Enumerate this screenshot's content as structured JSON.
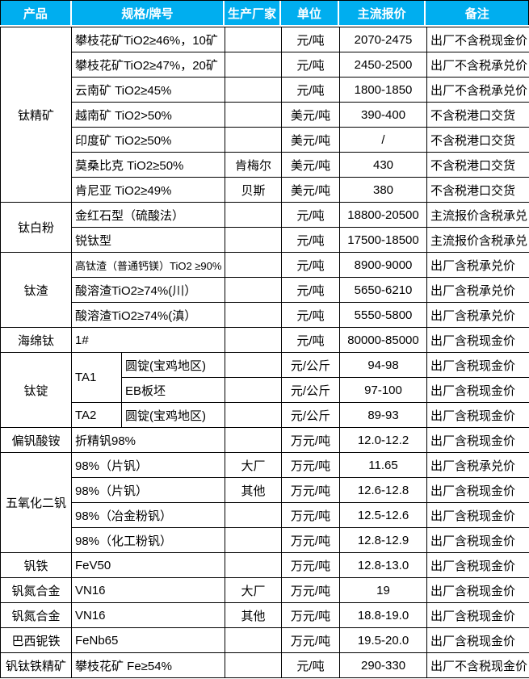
{
  "page": {
    "background": "#ffffff"
  },
  "table": {
    "border_color": "#000000",
    "header": {
      "bg_color": "#00AEEF",
      "text_color": "#ffffff",
      "cells": [
        "产品",
        "规格/牌号",
        "生产厂家",
        "单位",
        "主流报价",
        "备注"
      ]
    },
    "rows": [
      [
        {
          "name": "product",
          "text": "钛精矿",
          "rowspan": 7
        },
        {
          "name": "spec",
          "text": "攀枝花矿TiO2≥46%，10矿",
          "colspan": 2
        },
        {
          "name": "manufacturer",
          "text": ""
        },
        {
          "name": "unit",
          "text": "元/吨"
        },
        {
          "name": "price",
          "text": "2070-2475"
        },
        {
          "name": "note",
          "text": "出厂不含税现金价"
        }
      ],
      [
        {
          "name": "spec",
          "text": "攀枝花矿TiO2≥47%，20矿",
          "colspan": 2
        },
        {
          "name": "manufacturer",
          "text": ""
        },
        {
          "name": "unit",
          "text": "元/吨"
        },
        {
          "name": "price",
          "text": "2450-2500"
        },
        {
          "name": "note",
          "text": "出厂不含税承兑价"
        }
      ],
      [
        {
          "name": "spec",
          "text": "云南矿 TiO2≥45%",
          "colspan": 2
        },
        {
          "name": "manufacturer",
          "text": ""
        },
        {
          "name": "unit",
          "text": "元/吨"
        },
        {
          "name": "price",
          "text": "1800-1850"
        },
        {
          "name": "note",
          "text": "出厂不含税承兑价"
        }
      ],
      [
        {
          "name": "spec",
          "text": "越南矿 TiO2>50%",
          "colspan": 2
        },
        {
          "name": "manufacturer",
          "text": ""
        },
        {
          "name": "unit",
          "text": "美元/吨"
        },
        {
          "name": "price",
          "text": "390-400"
        },
        {
          "name": "note",
          "text": "不含税港口交货"
        }
      ],
      [
        {
          "name": "spec",
          "text": "印度矿 TiO2≥50%",
          "colspan": 2
        },
        {
          "name": "manufacturer",
          "text": ""
        },
        {
          "name": "unit",
          "text": "美元/吨"
        },
        {
          "name": "price",
          "text": "/"
        },
        {
          "name": "note",
          "text": "不含税港口交货"
        }
      ],
      [
        {
          "name": "spec",
          "text": "莫桑比克 TiO2≥50%",
          "colspan": 2
        },
        {
          "name": "manufacturer",
          "text": "肯梅尔"
        },
        {
          "name": "unit",
          "text": "美元/吨"
        },
        {
          "name": "price",
          "text": "430"
        },
        {
          "name": "note",
          "text": "不含税港口交货"
        }
      ],
      [
        {
          "name": "spec",
          "text": "肯尼亚 TiO2≥49%",
          "colspan": 2
        },
        {
          "name": "manufacturer",
          "text": "贝斯"
        },
        {
          "name": "unit",
          "text": "美元/吨"
        },
        {
          "name": "price",
          "text": "380"
        },
        {
          "name": "note",
          "text": "不含税港口交货"
        }
      ],
      [
        {
          "name": "product",
          "text": "钛白粉",
          "rowspan": 2
        },
        {
          "name": "spec",
          "text": "金红石型（硫酸法）",
          "colspan": 2
        },
        {
          "name": "manufacturer",
          "text": ""
        },
        {
          "name": "unit",
          "text": "元/吨"
        },
        {
          "name": "price",
          "text": "18800-20500"
        },
        {
          "name": "note",
          "text": "主流报价含税承兑"
        }
      ],
      [
        {
          "name": "spec",
          "text": "锐钛型",
          "colspan": 2
        },
        {
          "name": "manufacturer",
          "text": ""
        },
        {
          "name": "unit",
          "text": "元/吨"
        },
        {
          "name": "price",
          "text": "17500-18500"
        },
        {
          "name": "note",
          "text": "主流报价含税承兑"
        }
      ],
      [
        {
          "name": "product",
          "text": "钛渣",
          "rowspan": 3
        },
        {
          "name": "spec",
          "text": "高钛渣（普通钙镁）TiO2 ≥90%",
          "colspan": 2,
          "small": true
        },
        {
          "name": "manufacturer",
          "text": ""
        },
        {
          "name": "unit",
          "text": "元/吨"
        },
        {
          "name": "price",
          "text": "8900-9000"
        },
        {
          "name": "note",
          "text": "出厂含税承兑价"
        }
      ],
      [
        {
          "name": "spec",
          "text": "酸溶渣TiO2≥74%(川）",
          "colspan": 2
        },
        {
          "name": "manufacturer",
          "text": ""
        },
        {
          "name": "unit",
          "text": "元/吨"
        },
        {
          "name": "price",
          "text": "5650-6210"
        },
        {
          "name": "note",
          "text": "出厂含税承兑价"
        }
      ],
      [
        {
          "name": "spec",
          "text": "酸溶渣TiO2≥74%(滇）",
          "colspan": 2
        },
        {
          "name": "manufacturer",
          "text": ""
        },
        {
          "name": "unit",
          "text": "元/吨"
        },
        {
          "name": "price",
          "text": "5550-5800"
        },
        {
          "name": "note",
          "text": "出厂含税承兑价"
        }
      ],
      [
        {
          "name": "product",
          "text": "海绵钛"
        },
        {
          "name": "spec",
          "text": "1#",
          "colspan": 2
        },
        {
          "name": "manufacturer",
          "text": ""
        },
        {
          "name": "unit",
          "text": "元/吨"
        },
        {
          "name": "price",
          "text": "80000-85000"
        },
        {
          "name": "note",
          "text": "出厂含税现金价"
        }
      ],
      [
        {
          "name": "product",
          "text": "钛锭",
          "rowspan": 3
        },
        {
          "name": "spec-grade",
          "text": "TA1",
          "rowspan": 2
        },
        {
          "name": "spec-form",
          "text": "圆锭(宝鸡地区)"
        },
        {
          "name": "manufacturer",
          "text": ""
        },
        {
          "name": "unit",
          "text": "元/公斤"
        },
        {
          "name": "price",
          "text": "94-98"
        },
        {
          "name": "note",
          "text": "出厂含税现金价"
        }
      ],
      [
        {
          "name": "spec-form",
          "text": "EB板坯"
        },
        {
          "name": "manufacturer",
          "text": ""
        },
        {
          "name": "unit",
          "text": "元/公斤"
        },
        {
          "name": "price",
          "text": "97-100"
        },
        {
          "name": "note",
          "text": "出厂含税现金价"
        }
      ],
      [
        {
          "name": "spec-grade",
          "text": "TA2"
        },
        {
          "name": "spec-form",
          "text": "圆锭(宝鸡地区)"
        },
        {
          "name": "manufacturer",
          "text": ""
        },
        {
          "name": "unit",
          "text": "元/公斤"
        },
        {
          "name": "price",
          "text": "89-93"
        },
        {
          "name": "note",
          "text": "出厂含税现金价"
        }
      ],
      [
        {
          "name": "product",
          "text": "偏钒酸铵"
        },
        {
          "name": "spec",
          "text": "折精钒98%",
          "colspan": 2
        },
        {
          "name": "manufacturer",
          "text": ""
        },
        {
          "name": "unit",
          "text": "万元/吨"
        },
        {
          "name": "price",
          "text": "12.0-12.2"
        },
        {
          "name": "note",
          "text": "出厂含税现金价"
        }
      ],
      [
        {
          "name": "product",
          "text": "五氧化二钒",
          "rowspan": 4
        },
        {
          "name": "spec",
          "text": "98%（片钒）",
          "colspan": 2
        },
        {
          "name": "manufacturer",
          "text": "大厂"
        },
        {
          "name": "unit",
          "text": "万元/吨"
        },
        {
          "name": "price",
          "text": "11.65"
        },
        {
          "name": "note",
          "text": "出厂含税承兑价"
        }
      ],
      [
        {
          "name": "spec",
          "text": "98%（片钒）",
          "colspan": 2
        },
        {
          "name": "manufacturer",
          "text": "其他"
        },
        {
          "name": "unit",
          "text": "万元/吨"
        },
        {
          "name": "price",
          "text": "12.6-12.8"
        },
        {
          "name": "note",
          "text": "出厂含税现金价"
        }
      ],
      [
        {
          "name": "spec",
          "text": "98%（冶金粉钒）",
          "colspan": 2
        },
        {
          "name": "manufacturer",
          "text": ""
        },
        {
          "name": "unit",
          "text": "万元/吨"
        },
        {
          "name": "price",
          "text": "12.5-12.6"
        },
        {
          "name": "note",
          "text": "出厂含税现金价"
        }
      ],
      [
        {
          "name": "spec",
          "text": "98%（化工粉钒）",
          "colspan": 2
        },
        {
          "name": "manufacturer",
          "text": ""
        },
        {
          "name": "unit",
          "text": "万元/吨"
        },
        {
          "name": "price",
          "text": "12.8-12.9"
        },
        {
          "name": "note",
          "text": "出厂含税现金价"
        }
      ],
      [
        {
          "name": "product",
          "text": "钒铁"
        },
        {
          "name": "spec",
          "text": "FeV50",
          "colspan": 2
        },
        {
          "name": "manufacturer",
          "text": ""
        },
        {
          "name": "unit",
          "text": "万元/吨"
        },
        {
          "name": "price",
          "text": "12.8-13.0"
        },
        {
          "name": "note",
          "text": "出厂含税现金价"
        }
      ],
      [
        {
          "name": "product",
          "text": "钒氮合金"
        },
        {
          "name": "spec",
          "text": "VN16",
          "colspan": 2
        },
        {
          "name": "manufacturer",
          "text": "大厂"
        },
        {
          "name": "unit",
          "text": "万元/吨"
        },
        {
          "name": "price",
          "text": "19"
        },
        {
          "name": "note",
          "text": "出厂含税现金价"
        }
      ],
      [
        {
          "name": "product",
          "text": "钒氮合金"
        },
        {
          "name": "spec",
          "text": "VN16",
          "colspan": 2
        },
        {
          "name": "manufacturer",
          "text": "其他"
        },
        {
          "name": "unit",
          "text": "万元/吨"
        },
        {
          "name": "price",
          "text": "18.8-19.0"
        },
        {
          "name": "note",
          "text": "出厂含税现金价"
        }
      ],
      [
        {
          "name": "product",
          "text": "巴西铌铁"
        },
        {
          "name": "spec",
          "text": "FeNb65",
          "colspan": 2
        },
        {
          "name": "manufacturer",
          "text": ""
        },
        {
          "name": "unit",
          "text": "万元/吨"
        },
        {
          "name": "price",
          "text": "19.5-20.0"
        },
        {
          "name": "note",
          "text": "出厂含税现金价"
        }
      ],
      [
        {
          "name": "product",
          "text": "钒钛铁精矿"
        },
        {
          "name": "spec",
          "text": "攀枝花矿 Fe≥54%",
          "colspan": 2
        },
        {
          "name": "manufacturer",
          "text": ""
        },
        {
          "name": "unit",
          "text": "元/吨"
        },
        {
          "name": "price",
          "text": "290-330"
        },
        {
          "name": "note",
          "text": "出厂不含税现金价"
        }
      ]
    ]
  }
}
